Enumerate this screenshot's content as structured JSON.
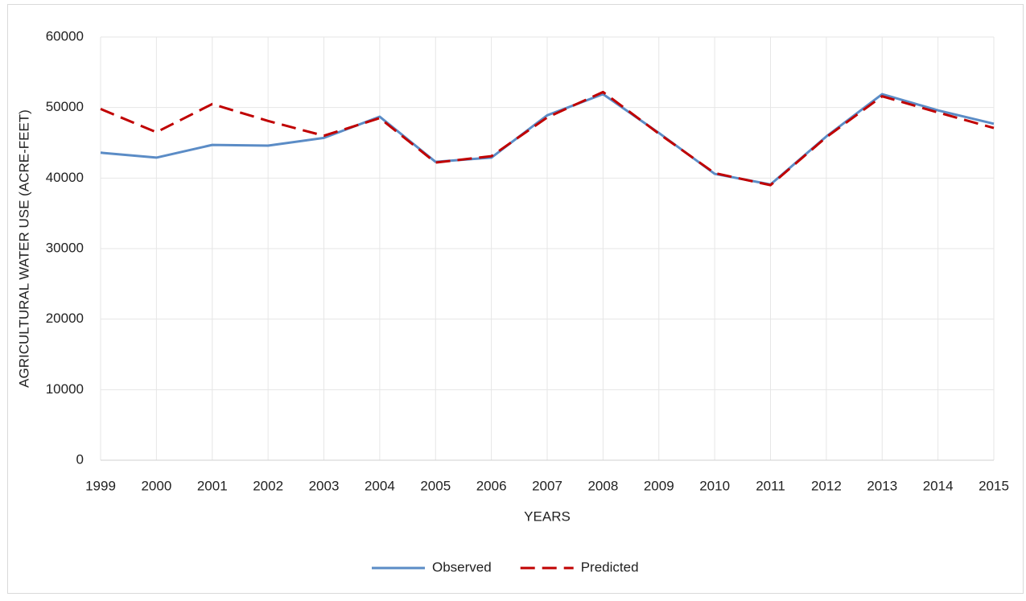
{
  "chart_data": {
    "type": "line",
    "x_label": "YEARS",
    "y_label": "AGRICULTURAL WATER USE (ACRE-FEET)",
    "x": [
      1999,
      2000,
      2001,
      2002,
      2003,
      2004,
      2005,
      2006,
      2007,
      2008,
      2009,
      2010,
      2011,
      2012,
      2013,
      2014,
      2015
    ],
    "xlim": [
      1999,
      2015
    ],
    "xticks": [
      1999,
      2000,
      2001,
      2002,
      2003,
      2004,
      2005,
      2006,
      2007,
      2008,
      2009,
      2010,
      2011,
      2012,
      2013,
      2014,
      2015
    ],
    "ylim": [
      0,
      60000
    ],
    "yticks": [
      0,
      10000,
      20000,
      30000,
      40000,
      50000,
      60000
    ],
    "grid": true,
    "legend": "bottom",
    "series": [
      {
        "name": "Observed",
        "color": "#5b8cc6",
        "dash": false,
        "values": [
          43600,
          42900,
          44700,
          44600,
          45700,
          48700,
          42300,
          42900,
          48900,
          51900,
          46400,
          40600,
          39100,
          45900,
          51900,
          49600,
          47700
        ]
      },
      {
        "name": "Predicted",
        "color": "#c00000",
        "dash": true,
        "values": [
          49800,
          46500,
          50500,
          48100,
          46000,
          48500,
          42200,
          43100,
          48600,
          52200,
          46300,
          40700,
          39000,
          45800,
          51600,
          49300,
          47100
        ]
      }
    ]
  }
}
